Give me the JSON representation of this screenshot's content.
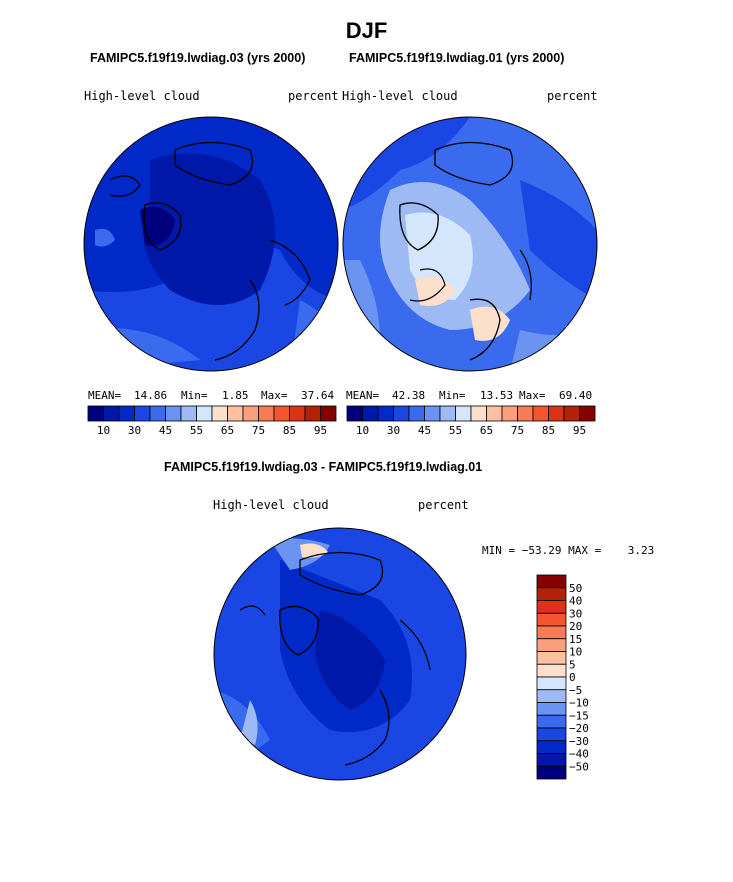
{
  "season": "DJF",
  "chart_data": [
    {
      "type": "contour-map",
      "id": "panel_case1",
      "title": "FAMIPC5.f19f19.lwdiag.03 (yrs 2000)",
      "variable": "High-level cloud",
      "units": "percent",
      "stats": {
        "mean_label": "MEAN=",
        "mean": "14.86",
        "min_label": "Min=",
        "min": "1.85",
        "max_label": "Max=",
        "max": "37.64"
      },
      "colorbar": {
        "orientation": "horizontal",
        "tick_labels": [
          "10",
          "30",
          "45",
          "55",
          "65",
          "75",
          "85",
          "95"
        ]
      }
    },
    {
      "type": "contour-map",
      "id": "panel_case2",
      "title": "FAMIPC5.f19f19.lwdiag.01 (yrs 2000)",
      "variable": "High-level cloud",
      "units": "percent",
      "stats": {
        "mean_label": "MEAN=",
        "mean": "42.38",
        "min_label": "Min=",
        "min": "13.53",
        "max_label": "Max=",
        "max": "69.40"
      },
      "colorbar": {
        "orientation": "horizontal",
        "tick_labels": [
          "10",
          "30",
          "45",
          "55",
          "65",
          "75",
          "85",
          "95"
        ]
      }
    },
    {
      "type": "contour-map",
      "id": "panel_diff",
      "title": "FAMIPC5.f19f19.lwdiag.03 - FAMIPC5.f19f19.lwdiag.01",
      "variable": "High-level cloud",
      "units": "percent",
      "stats_text": "MIN = −53.29 MAX =    3.23",
      "colorbar": {
        "orientation": "vertical",
        "tick_labels": [
          "50",
          "40",
          "30",
          "20",
          "15",
          "10",
          "5",
          "0",
          "−5",
          "−10",
          "−15",
          "−20",
          "−30",
          "−40",
          "−50"
        ]
      }
    }
  ],
  "colors": {
    "seq16": [
      "#00007f",
      "#0018a8",
      "#0029c8",
      "#1a46e4",
      "#3a6aee",
      "#6a93f2",
      "#9dbaf4",
      "#d3e6fb",
      "#fde0cc",
      "#fcc0a0",
      "#fa9f7c",
      "#f77b54",
      "#f3552f",
      "#dc3317",
      "#b52108",
      "#850000"
    ],
    "div14": [
      "#850000",
      "#b52108",
      "#dc3317",
      "#f3552f",
      "#f77b54",
      "#fa9f7c",
      "#fcc0a0",
      "#fde0cc",
      "#d3e6fb",
      "#9dbaf4",
      "#6a93f2",
      "#3a6aee",
      "#1a46e4",
      "#0029c8",
      "#0018a8",
      "#00007f"
    ]
  }
}
